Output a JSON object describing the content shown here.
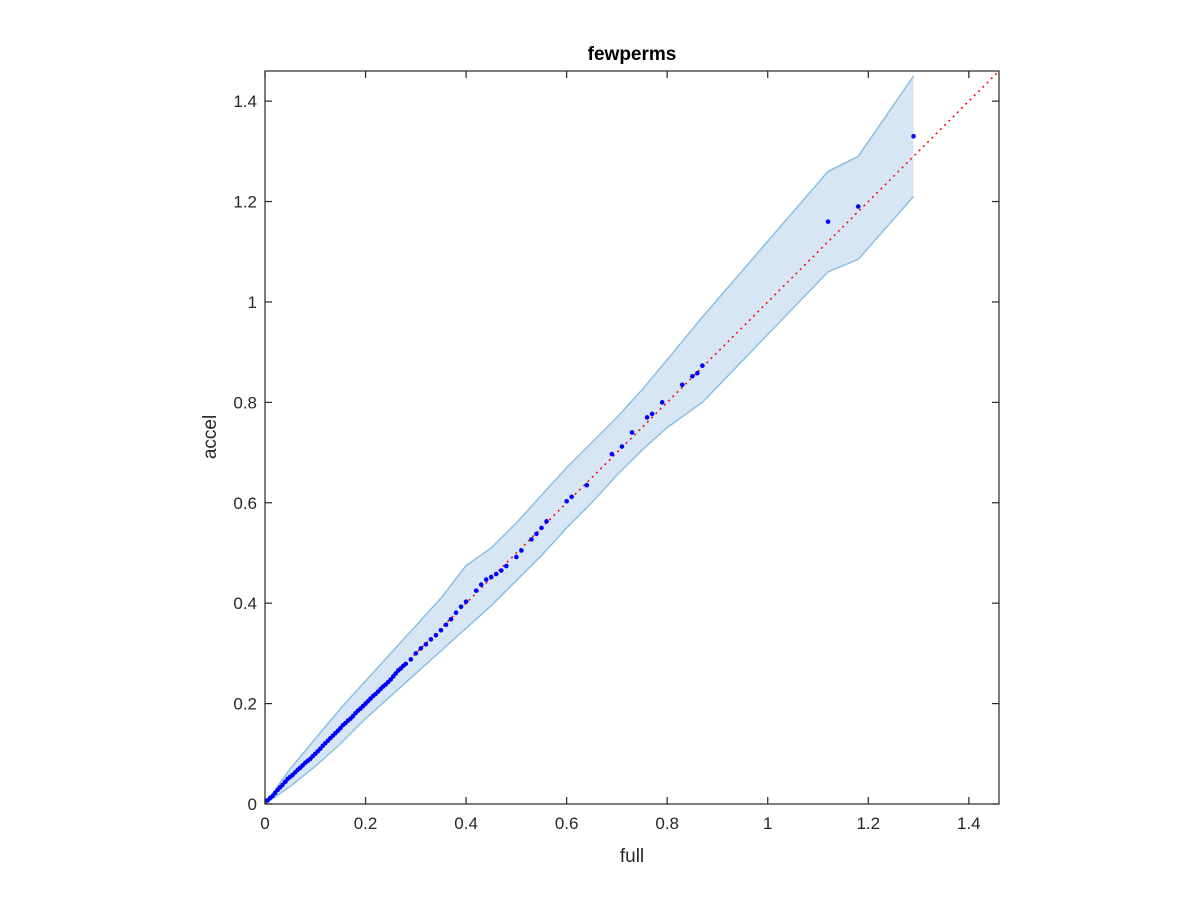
{
  "chart_data": {
    "type": "scatter",
    "title": "fewperms",
    "xlabel": "full",
    "ylabel": "accel",
    "xlim": [
      0,
      1.46
    ],
    "ylim": [
      0,
      1.46
    ],
    "xticks": [
      0,
      0.2,
      0.4,
      0.6,
      0.8,
      1,
      1.2,
      1.4
    ],
    "yticks": [
      0,
      0.2,
      0.4,
      0.6,
      0.8,
      1,
      1.2,
      1.4
    ],
    "xtick_labels": [
      "0",
      "0.2",
      "0.4",
      "0.6",
      "0.8",
      "1",
      "1.2",
      "1.4"
    ],
    "ytick_labels": [
      "0",
      "0.2",
      "0.4",
      "0.6",
      "0.8",
      "1",
      "1.2",
      "1.4"
    ],
    "grid": false,
    "colors": {
      "points": "#0000ff",
      "band_fill": "#d6e6f4",
      "band_edge": "#8ebfe0",
      "reference_line": "#ff0000"
    },
    "reference_line": {
      "style": "dotted",
      "x": [
        0,
        1.46
      ],
      "y": [
        0,
        1.46
      ]
    },
    "confidence_band": {
      "x": [
        0,
        0.05,
        0.1,
        0.15,
        0.2,
        0.25,
        0.3,
        0.35,
        0.4,
        0.45,
        0.5,
        0.55,
        0.6,
        0.65,
        0.7,
        0.75,
        0.8,
        0.87,
        1.12,
        1.18,
        1.29
      ],
      "upper": [
        0,
        0.07,
        0.13,
        0.19,
        0.245,
        0.3,
        0.355,
        0.41,
        0.475,
        0.51,
        0.56,
        0.615,
        0.67,
        0.72,
        0.77,
        0.825,
        0.885,
        0.97,
        1.26,
        1.29,
        1.45
      ],
      "lower": [
        0,
        0.035,
        0.075,
        0.12,
        0.17,
        0.215,
        0.26,
        0.305,
        0.35,
        0.395,
        0.445,
        0.495,
        0.55,
        0.6,
        0.655,
        0.705,
        0.75,
        0.8,
        1.06,
        1.085,
        1.21
      ]
    },
    "series": [
      {
        "x": [
          0.005,
          0.01,
          0.015,
          0.02,
          0.025,
          0.03,
          0.035,
          0.04,
          0.045,
          0.05,
          0.055,
          0.06,
          0.065,
          0.07,
          0.075,
          0.08,
          0.085,
          0.09,
          0.095,
          0.1,
          0.105,
          0.11,
          0.115,
          0.12,
          0.125,
          0.13,
          0.135,
          0.14,
          0.145,
          0.15,
          0.155,
          0.16,
          0.165,
          0.17,
          0.175,
          0.18,
          0.185,
          0.19,
          0.195,
          0.2,
          0.205,
          0.21,
          0.215,
          0.22,
          0.225,
          0.23,
          0.235,
          0.24,
          0.245,
          0.25,
          0.255,
          0.26,
          0.265,
          0.27,
          0.275,
          0.28,
          0.29,
          0.3,
          0.31,
          0.32,
          0.33,
          0.34,
          0.35,
          0.36,
          0.37,
          0.38,
          0.39,
          0.4,
          0.42,
          0.43,
          0.44,
          0.45,
          0.46,
          0.47,
          0.48,
          0.5,
          0.51,
          0.53,
          0.54,
          0.55,
          0.56,
          0.6,
          0.61,
          0.64,
          0.69,
          0.71,
          0.73,
          0.76,
          0.77,
          0.79,
          0.83,
          0.85,
          0.86,
          0.87,
          1.12,
          1.18,
          1.29
        ],
        "y": [
          0.007,
          0.012,
          0.016,
          0.022,
          0.028,
          0.033,
          0.038,
          0.044,
          0.05,
          0.054,
          0.058,
          0.063,
          0.068,
          0.072,
          0.077,
          0.082,
          0.086,
          0.09,
          0.095,
          0.1,
          0.105,
          0.11,
          0.116,
          0.121,
          0.126,
          0.131,
          0.136,
          0.141,
          0.146,
          0.151,
          0.157,
          0.161,
          0.166,
          0.17,
          0.175,
          0.181,
          0.186,
          0.19,
          0.195,
          0.2,
          0.205,
          0.21,
          0.215,
          0.219,
          0.224,
          0.229,
          0.234,
          0.238,
          0.243,
          0.248,
          0.254,
          0.26,
          0.266,
          0.27,
          0.275,
          0.279,
          0.288,
          0.3,
          0.31,
          0.318,
          0.328,
          0.336,
          0.346,
          0.357,
          0.368,
          0.381,
          0.393,
          0.403,
          0.425,
          0.437,
          0.447,
          0.452,
          0.458,
          0.465,
          0.474,
          0.492,
          0.505,
          0.527,
          0.538,
          0.55,
          0.563,
          0.603,
          0.612,
          0.635,
          0.697,
          0.712,
          0.74,
          0.77,
          0.777,
          0.8,
          0.835,
          0.852,
          0.858,
          0.873,
          1.16,
          1.19,
          1.33
        ]
      }
    ]
  }
}
